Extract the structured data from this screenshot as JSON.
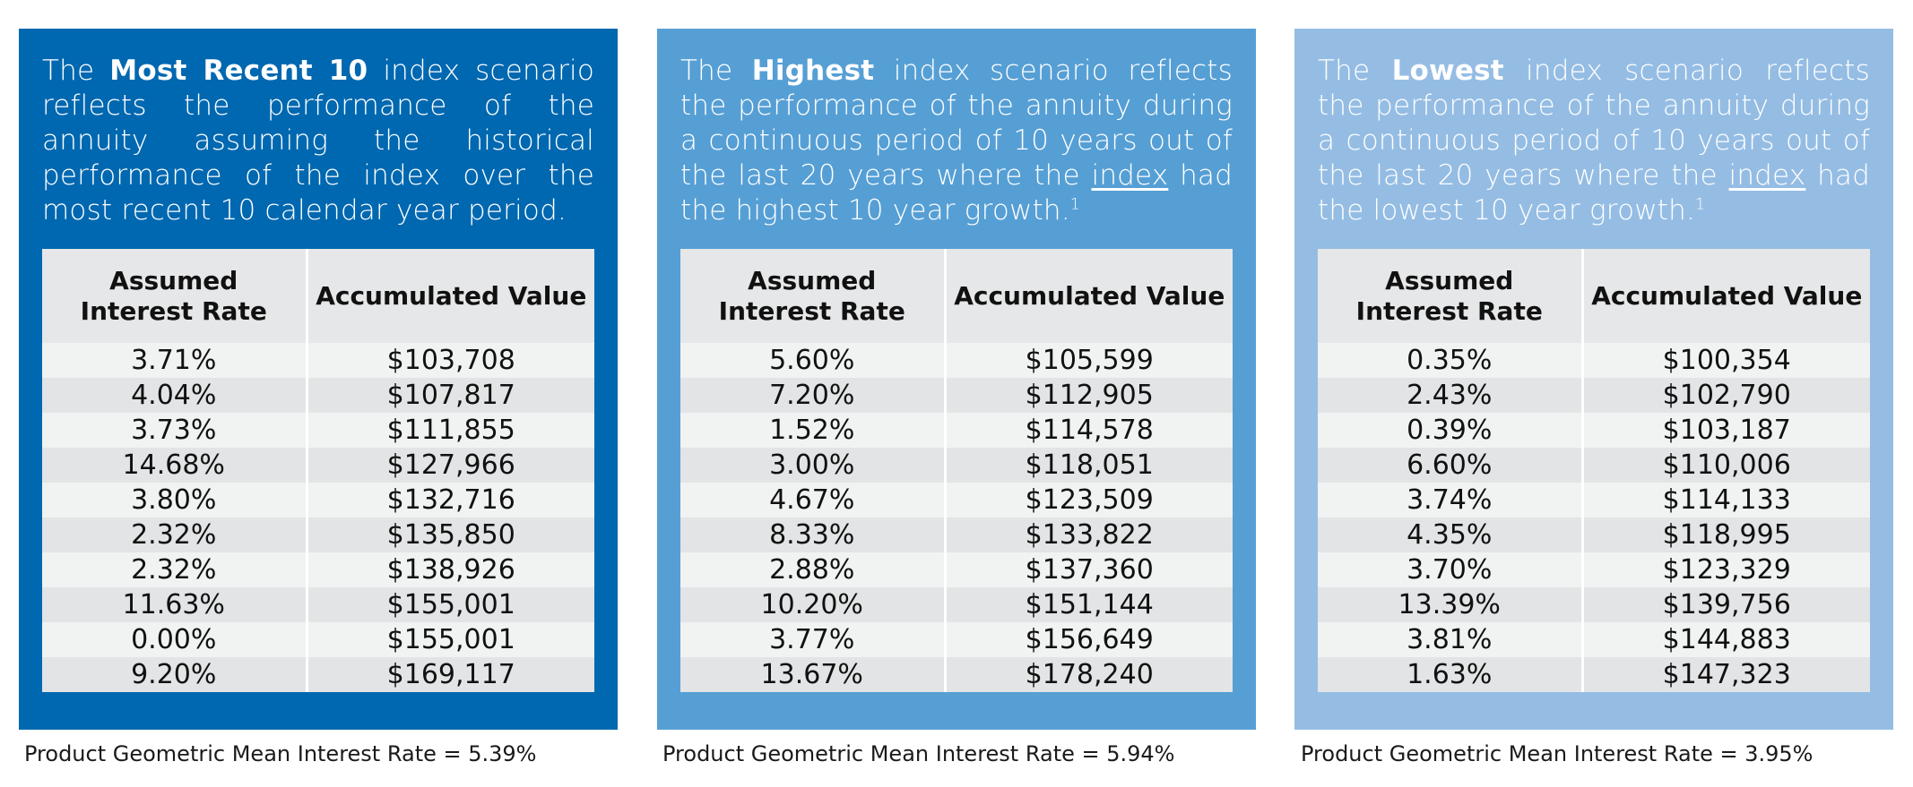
{
  "columns": {
    "rate": [
      "Assumed",
      "Interest Rate"
    ],
    "value": "Accumulated Value"
  },
  "panels": [
    {
      "bg": "#0068b0",
      "desc": {
        "pre": "The ",
        "bold": "Most Recent 10",
        "mid": " index scenario reflects  the performance of the annuity assuming the historical performance of the index over the most recent 10 calendar year period."
      },
      "rates": [
        "3.71%",
        "4.04%",
        "3.73%",
        "14.68%",
        "3.80%",
        "2.32%",
        "2.32%",
        "11.63%",
        "0.00%",
        "9.20%"
      ],
      "values": [
        "$103,708",
        "$107,817",
        "$111,855",
        "$127,966",
        "$132,716",
        "$135,850",
        "$138,926",
        "$155,001",
        "$155,001",
        "$169,117"
      ],
      "footer": "Product Geometric Mean Interest Rate = 5.39%"
    },
    {
      "bg": "#569fd5",
      "desc": {
        "pre": "The ",
        "bold": "Highest",
        "mid": " index scenario reflects the performance of the annuity during a continuous period of 10 years out of the last  20 years where the ",
        "link": "index",
        "post": " had the highest 10 year growth.",
        "sup": "1"
      },
      "rates": [
        "5.60%",
        "7.20%",
        "1.52%",
        "3.00%",
        "4.67%",
        "8.33%",
        "2.88%",
        "10.20%",
        "3.77%",
        "13.67%"
      ],
      "values": [
        "$105,599",
        "$112,905",
        "$114,578",
        "$118,051",
        "$123,509",
        "$133,822",
        "$137,360",
        "$151,144",
        "$156,649",
        "$178,240"
      ],
      "footer": "Product Geometric Mean Interest Rate = 5.94%"
    },
    {
      "bg": "#95bde4",
      "desc": {
        "pre": "The ",
        "bold": "Lowest",
        "mid": "  index scenario reflects the performance of the annuity during a continuous period of 10 years out of the last  20 years where the ",
        "link": "index",
        "post": " had the lowest 10 year growth.",
        "sup": "1"
      },
      "rates": [
        "0.35%",
        "2.43%",
        "0.39%",
        "6.60%",
        "3.74%",
        "4.35%",
        "3.70%",
        "13.39%",
        "3.81%",
        "1.63%"
      ],
      "values": [
        "$100,354",
        "$102,790",
        "$103,187",
        "$110,006",
        "$114,133",
        "$118,995",
        "$123,329",
        "$139,756",
        "$144,883",
        "$147,323"
      ],
      "footer": "Product Geometric Mean Interest Rate = 3.95%"
    }
  ]
}
